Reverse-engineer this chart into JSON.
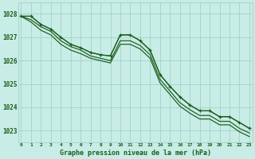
{
  "title": "Graphe pression niveau de la mer (hPa)",
  "bg_color": "#c8ece6",
  "grid_color": "#a0d4c8",
  "line_color": "#1a5c1a",
  "marker_color": "#1a5c1a",
  "ylim": [
    1022.5,
    1028.5
  ],
  "yticks": [
    1023,
    1024,
    1025,
    1026,
    1027,
    1028
  ],
  "xlim": [
    -0.3,
    23.3
  ],
  "series": [
    [
      1027.9,
      1027.9,
      1027.55,
      1027.35,
      1027.0,
      1026.7,
      1026.55,
      1026.35,
      1026.25,
      1026.2,
      1027.1,
      1027.1,
      1026.85,
      1026.45,
      1025.4,
      1024.9,
      1024.45,
      1024.1,
      1023.85,
      1023.85,
      1023.6,
      1023.6,
      1023.35,
      1023.1
    ],
    [
      1027.9,
      1027.75,
      1027.45,
      1027.25,
      1026.85,
      1026.6,
      1026.45,
      1026.2,
      1026.1,
      1026.0,
      1026.85,
      1026.85,
      1026.65,
      1026.25,
      1025.2,
      1024.7,
      1024.2,
      1023.9,
      1023.65,
      1023.65,
      1023.4,
      1023.4,
      1023.1,
      1022.9
    ],
    [
      1027.9,
      1027.65,
      1027.3,
      1027.1,
      1026.7,
      1026.45,
      1026.3,
      1026.1,
      1026.0,
      1025.9,
      1026.7,
      1026.7,
      1026.5,
      1026.1,
      1025.05,
      1024.55,
      1024.05,
      1023.75,
      1023.5,
      1023.5,
      1023.25,
      1023.25,
      1022.95,
      1022.75
    ]
  ],
  "marker_series_idx": 0,
  "figsize": [
    3.2,
    2.0
  ],
  "dpi": 100
}
